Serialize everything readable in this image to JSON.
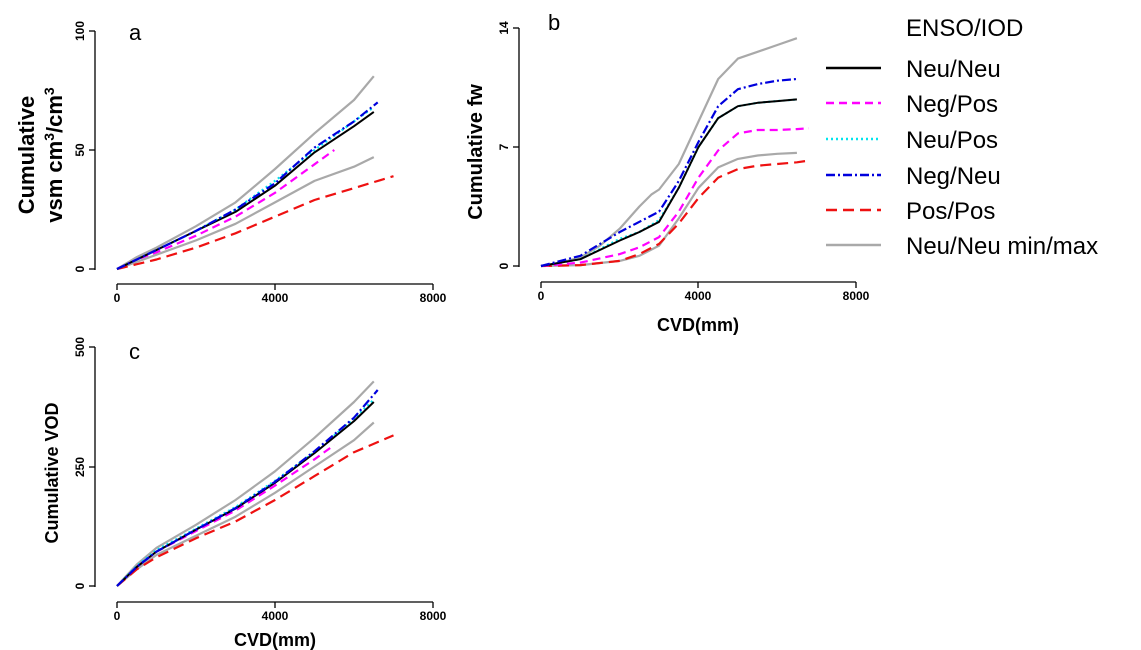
{
  "colors": {
    "Neu/Neu": "#000000",
    "Neg/Pos": "#ff00ff",
    "Neu/Pos": "#00e5ee",
    "Neg/Neu": "#0000dd",
    "Pos/Pos": "#ee1111",
    "Neu/Neu min/max": "#a9a9a9"
  },
  "legend": {
    "title": "ENSO/IOD",
    "entries": [
      "Neu/Neu",
      "Neg/Pos",
      "Neu/Pos",
      "Neg/Neu",
      "Pos/Pos",
      "Neu/Neu min/max"
    ],
    "placement": "right"
  },
  "chart_data": [
    {
      "panel": "a",
      "type": "line",
      "ylabel_line1": "Cumulative",
      "ylabel_line2_base": "vsm cm",
      "ylabel_sup1": "3",
      "ylabel_mid": "/cm",
      "ylabel_sup2": "3",
      "xlabel": "",
      "xlim": [
        0,
        8000
      ],
      "ylim": [
        0,
        100
      ],
      "xticks": [
        "0",
        "4000",
        "8000"
      ],
      "yticks": [
        "0",
        "50",
        "100"
      ],
      "series": [
        {
          "name": "Neu/Neu min/max",
          "style": "minmax",
          "x": [
            0,
            500,
            1000,
            2000,
            3000,
            4000,
            5000,
            6000,
            6500
          ],
          "y": [
            0,
            5,
            9,
            18,
            28,
            42,
            57,
            71,
            81
          ]
        },
        {
          "name": "Neu/Neu min/max",
          "style": "minmax",
          "x": [
            0,
            500,
            1000,
            2000,
            3000,
            4000,
            5000,
            6000,
            6500
          ],
          "y": [
            0,
            3,
            6,
            12,
            19,
            28,
            37,
            43,
            47
          ]
        },
        {
          "name": "Pos/Pos",
          "style": "pospos",
          "x": [
            0,
            500,
            1000,
            2000,
            3000,
            4000,
            5000,
            6000,
            7000
          ],
          "y": [
            0,
            2,
            4,
            9,
            15,
            22,
            29,
            34,
            39
          ]
        },
        {
          "name": "Neg/Pos",
          "style": "negpos",
          "x": [
            0,
            500,
            1000,
            2000,
            3000,
            4000,
            5000,
            5500
          ],
          "y": [
            0,
            4,
            7,
            14,
            22,
            32,
            44,
            50
          ]
        },
        {
          "name": "Neu/Pos",
          "style": "neupos",
          "x": [
            0,
            500,
            1000,
            2000,
            3000,
            4000,
            5000,
            6000,
            6500
          ],
          "y": [
            0,
            4,
            8,
            16,
            25,
            37,
            50,
            62,
            68
          ]
        },
        {
          "name": "Neu/Neu",
          "style": "neuneu",
          "x": [
            0,
            500,
            1000,
            2000,
            3000,
            4000,
            5000,
            6000,
            6500
          ],
          "y": [
            0,
            4,
            8,
            16,
            24,
            35,
            49,
            60,
            66
          ]
        },
        {
          "name": "Neg/Neu",
          "style": "negneu",
          "x": [
            0,
            500,
            1000,
            2000,
            3000,
            4000,
            5000,
            6000,
            6600
          ],
          "y": [
            0,
            4,
            8,
            16,
            25,
            36,
            51,
            62,
            70
          ]
        }
      ]
    },
    {
      "panel": "b",
      "type": "line",
      "ylabel_line1": "Cumulative fw",
      "xlabel": "CVD(mm)",
      "xlim": [
        0,
        8000
      ],
      "ylim": [
        0,
        14
      ],
      "xticks": [
        "0",
        "4000",
        "8000"
      ],
      "yticks": [
        "0",
        "7",
        "14"
      ],
      "series": [
        {
          "name": "Neu/Neu min/max",
          "style": "minmax",
          "x": [
            0,
            500,
            1000,
            1500,
            2000,
            2500,
            2800,
            3000,
            3500,
            4000,
            4500,
            5000,
            5500,
            6000,
            6500
          ],
          "y": [
            0,
            0.2,
            0.5,
            1.2,
            2.2,
            3.5,
            4.2,
            4.5,
            6.0,
            8.5,
            11.0,
            12.2,
            12.6,
            13.0,
            13.4
          ]
        },
        {
          "name": "Neu/Neu min/max",
          "style": "minmax",
          "x": [
            0,
            1000,
            2000,
            2500,
            3000,
            3500,
            4000,
            4500,
            5000,
            5500,
            6000,
            6500
          ],
          "y": [
            0,
            0.05,
            0.3,
            0.6,
            1.2,
            2.8,
            4.6,
            5.8,
            6.3,
            6.5,
            6.6,
            6.65
          ]
        },
        {
          "name": "Pos/Pos",
          "style": "pospos",
          "x": [
            0,
            1000,
            2000,
            2500,
            3000,
            3500,
            4000,
            4500,
            5000,
            5500,
            6000,
            6500,
            6800
          ],
          "y": [
            0,
            0.05,
            0.3,
            0.7,
            1.3,
            2.5,
            4.0,
            5.2,
            5.7,
            5.9,
            6.0,
            6.1,
            6.2
          ]
        },
        {
          "name": "Neg/Pos",
          "style": "negpos",
          "x": [
            0,
            1000,
            2000,
            2500,
            3000,
            3500,
            4000,
            4500,
            5000,
            5500,
            6000,
            6500,
            6800
          ],
          "y": [
            0,
            0.2,
            0.7,
            1.1,
            1.7,
            3.2,
            5.2,
            6.8,
            7.8,
            8.0,
            8.0,
            8.05,
            8.1
          ]
        },
        {
          "name": "Neu/Pos",
          "style": "neupos",
          "x": [
            0,
            1000,
            2000,
            2500,
            3000,
            3500,
            4000,
            4500,
            5000,
            5500,
            6000,
            6500
          ],
          "y": [
            0,
            0.4,
            1.6,
            2.0,
            2.7,
            4.6,
            7.0,
            8.7,
            9.4,
            9.6,
            9.7,
            9.8
          ]
        },
        {
          "name": "Neu/Neu",
          "style": "neuneu",
          "x": [
            0,
            1000,
            2000,
            2500,
            3000,
            3500,
            4000,
            4500,
            5000,
            5500,
            6000,
            6500
          ],
          "y": [
            0,
            0.4,
            1.5,
            2.0,
            2.6,
            4.6,
            7.0,
            8.7,
            9.4,
            9.6,
            9.7,
            9.8
          ]
        },
        {
          "name": "Neg/Neu",
          "style": "negneu",
          "x": [
            0,
            1000,
            2000,
            2500,
            3000,
            3500,
            4000,
            4500,
            5000,
            5500,
            6000,
            6500
          ],
          "y": [
            0,
            0.6,
            2.0,
            2.6,
            3.2,
            5.0,
            7.3,
            9.4,
            10.4,
            10.7,
            10.9,
            11.0
          ]
        }
      ]
    },
    {
      "panel": "c",
      "type": "line",
      "ylabel_line1": "Cumulative VOD",
      "xlabel": "CVD(mm)",
      "xlim": [
        0,
        8000
      ],
      "ylim": [
        0,
        500
      ],
      "xticks": [
        "0",
        "4000",
        "8000"
      ],
      "yticks": [
        "0",
        "250",
        "500"
      ],
      "series": [
        {
          "name": "Neu/Neu min/max",
          "style": "minmax",
          "x": [
            0,
            500,
            1000,
            2000,
            3000,
            4000,
            5000,
            6000,
            6500
          ],
          "y": [
            0,
            45,
            80,
            128,
            180,
            240,
            310,
            385,
            428
          ]
        },
        {
          "name": "Neu/Neu min/max",
          "style": "minmax",
          "x": [
            0,
            500,
            1000,
            2000,
            3000,
            4000,
            5000,
            6000,
            6500
          ],
          "y": [
            0,
            35,
            65,
            105,
            145,
            195,
            250,
            305,
            342
          ]
        },
        {
          "name": "Pos/Pos",
          "style": "pospos",
          "x": [
            0,
            500,
            1000,
            2000,
            3000,
            4000,
            5000,
            6000,
            7000
          ],
          "y": [
            0,
            35,
            60,
            100,
            135,
            180,
            230,
            280,
            315
          ]
        },
        {
          "name": "Neg/Pos",
          "style": "negpos",
          "x": [
            0,
            500,
            1000,
            2000,
            3000,
            4000,
            5000,
            5500
          ],
          "y": [
            0,
            40,
            72,
            115,
            158,
            210,
            265,
            295
          ]
        },
        {
          "name": "Neu/Pos",
          "style": "neupos",
          "x": [
            0,
            500,
            1000,
            2000,
            3000,
            4000,
            5000,
            6000,
            6500
          ],
          "y": [
            0,
            42,
            75,
            120,
            165,
            220,
            280,
            350,
            390
          ]
        },
        {
          "name": "Neu/Neu",
          "style": "neuneu",
          "x": [
            0,
            500,
            1000,
            2000,
            3000,
            4000,
            5000,
            6000,
            6500
          ],
          "y": [
            0,
            40,
            72,
            118,
            162,
            216,
            278,
            345,
            385
          ]
        },
        {
          "name": "Neg/Neu",
          "style": "negneu",
          "x": [
            0,
            500,
            1000,
            2000,
            3000,
            4000,
            5000,
            6000,
            6600
          ],
          "y": [
            0,
            40,
            72,
            118,
            163,
            218,
            282,
            352,
            410
          ]
        }
      ]
    }
  ]
}
